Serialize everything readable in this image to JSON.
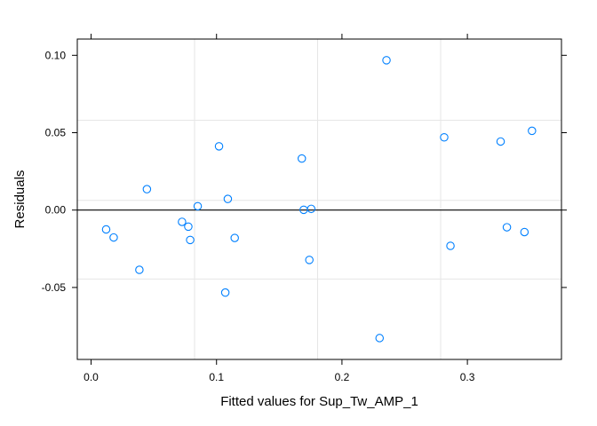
{
  "chart_data": {
    "type": "scatter",
    "title": "",
    "xlabel": "Fitted values for Sup_Tw_AMP_1",
    "ylabel": "Residuals",
    "xlim": [
      -0.011,
      0.375
    ],
    "ylim": [
      -0.0965,
      0.1105
    ],
    "x_ticks": [
      0.0,
      0.1,
      0.2,
      0.3
    ],
    "x_tick_labels": [
      "0.0",
      "0.1",
      "0.2",
      "0.3"
    ],
    "y_ticks": [
      -0.05,
      0.0,
      0.05,
      0.1
    ],
    "y_tick_labels": [
      "-0.05",
      "0.00",
      "0.05",
      "0.10"
    ],
    "grid": true,
    "grid_x": [
      0.0825,
      0.1806,
      0.2787
    ],
    "grid_y": [
      -0.0445,
      0.0063,
      0.058
    ],
    "reference_line_y": 0.0,
    "colors": {
      "points": "#0080ff",
      "grid": "#e6e6e6",
      "frame": "#000000",
      "reference": "#000000"
    },
    "points": [
      {
        "x": 0.012,
        "y": -0.0125
      },
      {
        "x": 0.018,
        "y": -0.0177
      },
      {
        "x": 0.0385,
        "y": -0.0386
      },
      {
        "x": 0.0445,
        "y": 0.0135
      },
      {
        "x": 0.0725,
        "y": -0.0076
      },
      {
        "x": 0.0775,
        "y": -0.0107
      },
      {
        "x": 0.079,
        "y": -0.0193
      },
      {
        "x": 0.085,
        "y": 0.0025
      },
      {
        "x": 0.102,
        "y": 0.0412
      },
      {
        "x": 0.107,
        "y": -0.0533
      },
      {
        "x": 0.109,
        "y": 0.0072
      },
      {
        "x": 0.1145,
        "y": -0.018
      },
      {
        "x": 0.168,
        "y": 0.0333
      },
      {
        "x": 0.1695,
        "y": 0.0002
      },
      {
        "x": 0.174,
        "y": -0.0322
      },
      {
        "x": 0.1755,
        "y": 0.0008
      },
      {
        "x": 0.23,
        "y": -0.0827
      },
      {
        "x": 0.2355,
        "y": 0.0968
      },
      {
        "x": 0.2815,
        "y": 0.047
      },
      {
        "x": 0.2865,
        "y": -0.0231
      },
      {
        "x": 0.3265,
        "y": 0.0443
      },
      {
        "x": 0.3315,
        "y": -0.0111
      },
      {
        "x": 0.3455,
        "y": -0.0142
      },
      {
        "x": 0.3515,
        "y": 0.0512
      }
    ]
  }
}
